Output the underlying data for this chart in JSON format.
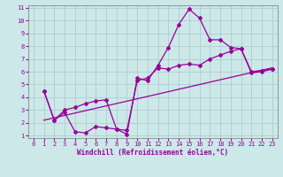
{
  "xlabel": "Windchill (Refroidissement éolien,°C)",
  "ylabel": "",
  "xlim": [
    -0.5,
    23.5
  ],
  "ylim": [
    0.8,
    11.2
  ],
  "xticks": [
    0,
    1,
    2,
    3,
    4,
    5,
    6,
    7,
    8,
    9,
    10,
    11,
    12,
    13,
    14,
    15,
    16,
    17,
    18,
    19,
    20,
    21,
    22,
    23
  ],
  "yticks": [
    1,
    2,
    3,
    4,
    5,
    6,
    7,
    8,
    9,
    10,
    11
  ],
  "bg_color": "#cce8e8",
  "line_color": "#990099",
  "grid_color": "#aac8c8",
  "line1_x": [
    1,
    2,
    3,
    4,
    5,
    6,
    7,
    8,
    9,
    10,
    11,
    12,
    13,
    14,
    15,
    16,
    17,
    18,
    19,
    20,
    21,
    22,
    23
  ],
  "line1_y": [
    4.5,
    2.2,
    2.8,
    1.3,
    1.2,
    1.7,
    1.6,
    1.5,
    1.1,
    5.5,
    5.3,
    6.5,
    7.9,
    9.7,
    10.9,
    10.2,
    8.5,
    8.5,
    7.9,
    7.8,
    5.9,
    6.0,
    6.2
  ],
  "line2_x": [
    1,
    2,
    3,
    4,
    5,
    6,
    7,
    8,
    9,
    10,
    11,
    12,
    13,
    14,
    15,
    16,
    17,
    18,
    19,
    20,
    21,
    22,
    23
  ],
  "line2_y": [
    4.5,
    2.2,
    3.0,
    3.2,
    3.5,
    3.7,
    3.8,
    1.5,
    1.4,
    5.3,
    5.5,
    6.3,
    6.2,
    6.5,
    6.6,
    6.5,
    7.0,
    7.3,
    7.6,
    7.8,
    6.0,
    6.1,
    6.2
  ],
  "line3_x": [
    1,
    23
  ],
  "line3_y": [
    2.2,
    6.3
  ],
  "spine_color": "#888888"
}
